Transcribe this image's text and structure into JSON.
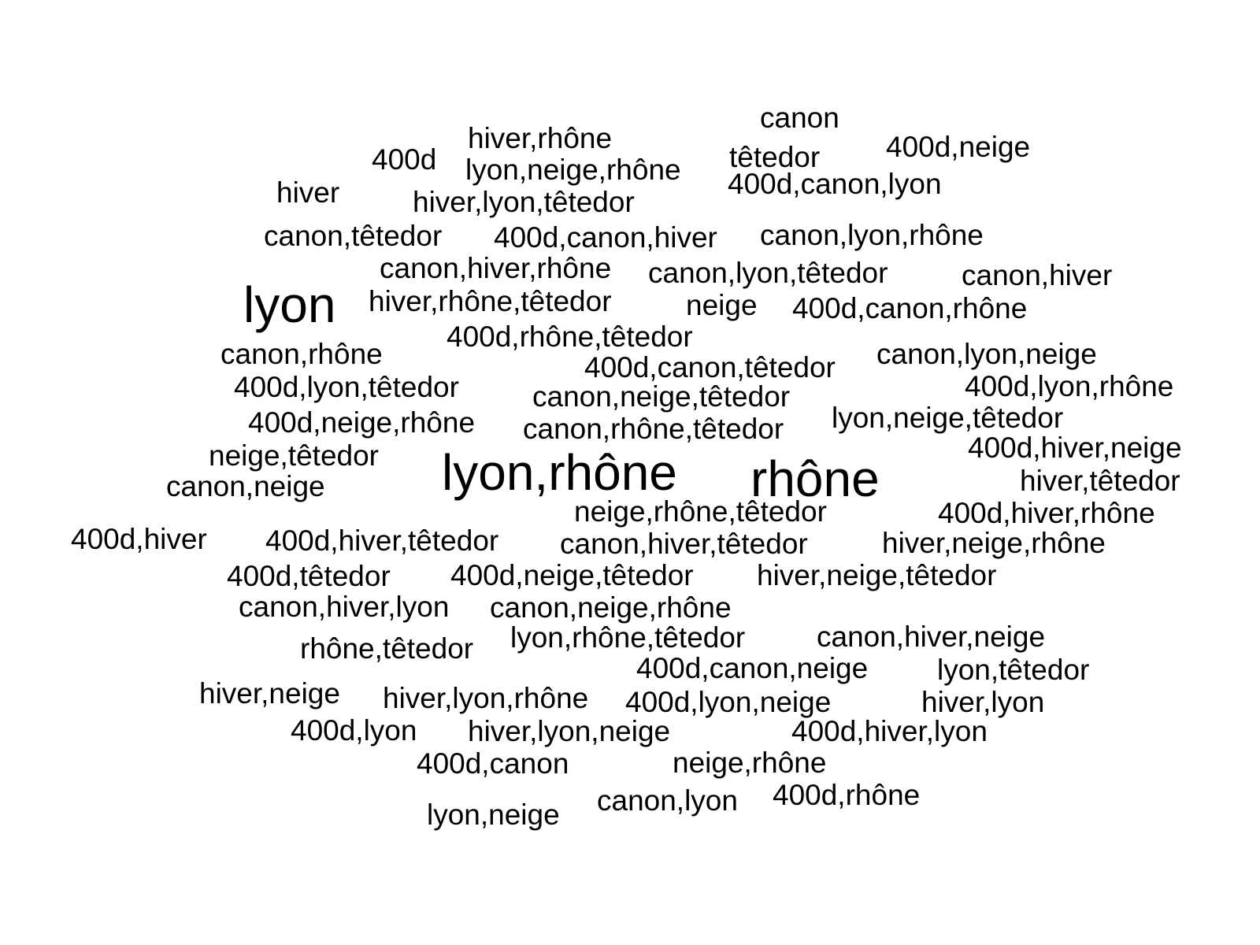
{
  "word_cloud": {
    "words": [
      "canon",
      "400d,neige",
      "hiver,rhône",
      "400d",
      "têtedor",
      "lyon,neige,rhône",
      "hiver",
      "400d,canon,lyon",
      "hiver,lyon,têtedor",
      "canon,têtedor",
      "400d,canon,hiver",
      "canon,lyon,rhône",
      "canon,hiver,rhône",
      "canon,lyon,têtedor",
      "canon,hiver",
      "lyon",
      "hiver,rhône,têtedor",
      "neige",
      "400d,canon,rhône",
      "400d,rhône,têtedor",
      "canon,rhône",
      "canon,lyon,neige",
      "400d,canon,têtedor",
      "400d,lyon,têtedor",
      "400d,lyon,rhône",
      "canon,neige,têtedor",
      "lyon,neige,têtedor",
      "400d,neige,rhône",
      "canon,rhône,têtedor",
      "400d,hiver,neige",
      "neige,têtedor",
      "lyon,rhône",
      "rhône",
      "hiver,têtedor",
      "canon,neige",
      "neige,rhône,têtedor",
      "400d,hiver,rhône",
      "400d,hiver",
      "400d,hiver,têtedor",
      "canon,hiver,têtedor",
      "hiver,neige,rhône",
      "400d,têtedor",
      "400d,neige,têtedor",
      "hiver,neige,têtedor",
      "canon,hiver,lyon",
      "canon,neige,rhône",
      "rhône,têtedor",
      "lyon,rhône,têtedor",
      "canon,hiver,neige",
      "400d,canon,neige",
      "lyon,têtedor",
      "hiver,neige",
      "hiver,lyon,rhône",
      "400d,lyon,neige",
      "hiver,lyon",
      "400d,lyon",
      "hiver,lyon,neige",
      "400d,hiver,lyon",
      "400d,canon",
      "neige,rhône",
      "400d,rhône",
      "canon,lyon",
      "lyon,neige"
    ]
  }
}
